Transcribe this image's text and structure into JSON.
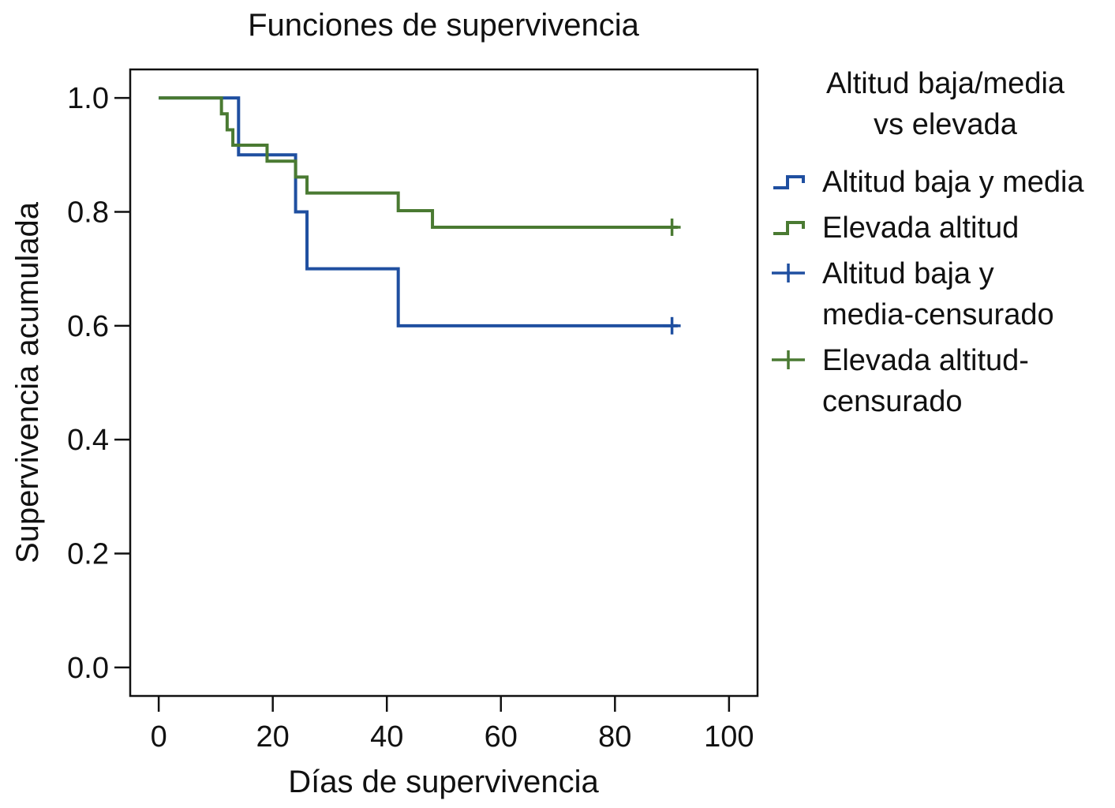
{
  "chart_data": {
    "type": "line",
    "step": true,
    "title": "Funciones de supervivencia",
    "xlabel": "Días de supervivencia",
    "ylabel": "Supervivencia acumulada",
    "xlim": [
      -5,
      105
    ],
    "ylim": [
      -0.05,
      1.05
    ],
    "xticks": [
      0,
      20,
      40,
      60,
      80,
      100
    ],
    "yticks": [
      0.0,
      0.2,
      0.4,
      0.6,
      0.8,
      1.0
    ],
    "xtick_labels": [
      "0",
      "20",
      "40",
      "60",
      "80",
      "100"
    ],
    "ytick_labels": [
      "0.0",
      "0.2",
      "0.4",
      "0.6",
      "0.8",
      "1.0"
    ],
    "grid": false,
    "legend": {
      "placement": "right",
      "title_lines": [
        "Altitud baja/media",
        "vs elevada"
      ],
      "entries": [
        {
          "kind": "line",
          "color": "#1f4fa0",
          "lines": [
            "Altitud baja y media"
          ]
        },
        {
          "kind": "line",
          "color": "#4a7a32",
          "lines": [
            "Elevada altitud"
          ]
        },
        {
          "kind": "censor",
          "color": "#1f4fa0",
          "lines": [
            "Altitud baja y",
            "media-censurado"
          ]
        },
        {
          "kind": "censor",
          "color": "#4a7a32",
          "lines": [
            "Elevada altitud-",
            "censurado"
          ]
        }
      ]
    },
    "series": [
      {
        "name": "Altitud baja y media",
        "color": "#1f4fa0",
        "points": [
          [
            0,
            1.0
          ],
          [
            14,
            0.9
          ],
          [
            24,
            0.8
          ],
          [
            26,
            0.7
          ],
          [
            42,
            0.6
          ],
          [
            91,
            0.6
          ]
        ],
        "censored": [
          [
            90,
            0.6
          ]
        ]
      },
      {
        "name": "Elevada altitud",
        "color": "#4a7a32",
        "points": [
          [
            0,
            1.0
          ],
          [
            11,
            0.972
          ],
          [
            12,
            0.944
          ],
          [
            13,
            0.917
          ],
          [
            19,
            0.889
          ],
          [
            24,
            0.861
          ],
          [
            26,
            0.833
          ],
          [
            42,
            0.802
          ],
          [
            48,
            0.773
          ],
          [
            91,
            0.773
          ]
        ],
        "censored": [
          [
            90,
            0.773
          ]
        ]
      }
    ]
  }
}
